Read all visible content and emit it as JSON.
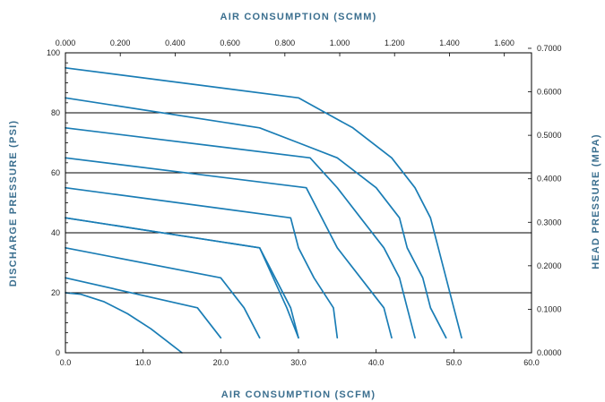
{
  "chart_data": {
    "type": "line",
    "x_label_bottom": "AIR CONSUMPTION (SCFM)",
    "x_label_top": "AIR CONSUMPTION (SCMM)",
    "y_label_left": "DISCHARGE PRESSURE (PSI)",
    "y_label_right": "HEAD PRESSURE (MPA)",
    "x_range": [
      0,
      60
    ],
    "y_range": [
      0,
      100
    ],
    "x_ticks": [
      "0.0",
      "10.0",
      "20.0",
      "30.0",
      "40.0",
      "50.0",
      "60.0"
    ],
    "x_tick_values": [
      0,
      10,
      20,
      30,
      40,
      50,
      60
    ],
    "y_ticks": [
      "0",
      "20",
      "40",
      "60",
      "80",
      "100"
    ],
    "y_tick_values": [
      0,
      20,
      40,
      60,
      80,
      100
    ],
    "top_ticks": [
      "0.000",
      "0.200",
      "0.400",
      "0.600",
      "0.800",
      "1.000",
      "1.200",
      "1.400",
      "1.600"
    ],
    "top_tick_scfm": [
      0,
      7.06,
      14.12,
      21.19,
      28.25,
      35.31,
      42.37,
      49.44,
      56.5
    ],
    "right_ticks": [
      "0.0000",
      "0.1000",
      "0.2000",
      "0.3000",
      "0.4000",
      "0.5000",
      "0.6000",
      "0.7000"
    ],
    "right_tick_psi": [
      0,
      14.5,
      29.0,
      43.5,
      58.0,
      72.5,
      87.0,
      101.5
    ],
    "grid_lines_psi": [
      20,
      40,
      60,
      80
    ],
    "line_color": "#1a7db5",
    "grid_color": "#000000",
    "series": [
      {
        "points": [
          [
            0,
            20
          ],
          [
            2,
            19.5
          ],
          [
            5,
            17
          ],
          [
            8,
            13
          ],
          [
            11,
            8
          ],
          [
            13.5,
            3
          ],
          [
            15,
            0
          ]
        ]
      },
      {
        "points": [
          [
            0,
            25
          ],
          [
            17,
            15
          ],
          [
            20,
            5
          ]
        ]
      },
      {
        "points": [
          [
            0,
            35
          ],
          [
            20,
            25
          ],
          [
            23,
            15
          ],
          [
            25,
            5
          ]
        ]
      },
      {
        "points": [
          [
            0,
            45
          ],
          [
            25,
            35
          ],
          [
            28.5,
            15
          ],
          [
            30,
            5
          ]
        ]
      },
      {
        "points": [
          [
            0,
            45
          ],
          [
            25,
            35
          ],
          [
            29,
            15
          ],
          [
            30,
            5
          ]
        ]
      },
      {
        "points": [
          [
            0,
            55
          ],
          [
            29,
            45
          ],
          [
            30,
            35
          ],
          [
            32,
            25
          ],
          [
            34.5,
            15
          ],
          [
            35,
            5
          ]
        ]
      },
      {
        "points": [
          [
            0,
            65
          ],
          [
            31,
            55
          ],
          [
            35,
            35
          ],
          [
            38,
            25
          ],
          [
            41,
            15
          ],
          [
            42,
            5
          ]
        ]
      },
      {
        "points": [
          [
            0,
            75
          ],
          [
            31.5,
            65
          ],
          [
            35,
            55
          ],
          [
            38,
            45
          ],
          [
            41,
            35
          ],
          [
            43,
            25
          ],
          [
            44,
            15
          ],
          [
            45,
            5
          ]
        ]
      },
      {
        "points": [
          [
            0,
            85
          ],
          [
            25,
            75
          ],
          [
            30,
            70
          ],
          [
            35,
            65
          ],
          [
            40,
            55
          ],
          [
            43,
            45
          ],
          [
            44,
            35
          ],
          [
            46,
            25
          ],
          [
            47,
            15
          ],
          [
            49,
            5
          ]
        ]
      },
      {
        "points": [
          [
            0,
            95
          ],
          [
            30,
            85
          ],
          [
            37,
            75
          ],
          [
            42,
            65
          ],
          [
            45,
            55
          ],
          [
            47,
            45
          ],
          [
            48,
            35
          ],
          [
            50,
            15
          ],
          [
            51,
            5
          ]
        ]
      }
    ]
  }
}
